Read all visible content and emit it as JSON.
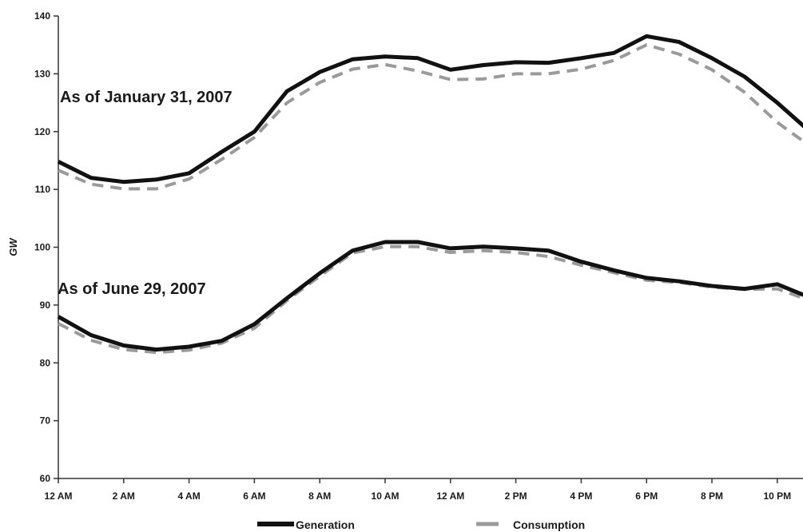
{
  "chart_data": {
    "type": "line",
    "ylabel": "GW",
    "ylim": [
      60,
      140
    ],
    "yticks": [
      60,
      70,
      80,
      90,
      100,
      110,
      120,
      130,
      140
    ],
    "xticks": [
      "12 AM",
      "2 AM",
      "4 AM",
      "6 AM",
      "8 AM",
      "10 AM",
      "12 AM",
      "2 PM",
      "4 PM",
      "6 PM",
      "8 PM",
      "10 PM"
    ],
    "x_hours": [
      0,
      1,
      2,
      3,
      4,
      5,
      6,
      7,
      8,
      9,
      10,
      11,
      12,
      13,
      14,
      15,
      16,
      17,
      18,
      19,
      20,
      21,
      22,
      23
    ],
    "grid": false,
    "legend_placement": "bottom",
    "annotations": [
      {
        "text": "As of January 31, 2007",
        "group": "january"
      },
      {
        "text": "As of June 29, 2007",
        "group": "june"
      }
    ],
    "series": [
      {
        "name": "Generation",
        "group": "january",
        "style": "solid",
        "color": "#111111",
        "values": [
          114.8,
          112.0,
          111.3,
          111.7,
          112.8,
          116.5,
          120.0,
          127.0,
          130.3,
          132.5,
          133.0,
          132.7,
          130.7,
          131.5,
          132.0,
          131.9,
          132.7,
          133.6,
          136.5,
          135.5,
          132.7,
          129.5,
          125.0,
          120.0
        ]
      },
      {
        "name": "Consumption",
        "group": "january",
        "style": "dashed",
        "color": "#9a9a9a",
        "values": [
          113.3,
          110.9,
          110.1,
          110.1,
          111.8,
          115.2,
          119.0,
          125.0,
          128.5,
          130.8,
          131.6,
          130.5,
          129.0,
          129.1,
          130.0,
          130.0,
          130.8,
          132.3,
          135.0,
          133.4,
          130.7,
          126.8,
          121.6,
          117.5
        ]
      },
      {
        "name": "Generation",
        "group": "june",
        "style": "solid",
        "color": "#111111",
        "values": [
          88.0,
          84.8,
          83.0,
          82.3,
          82.8,
          83.8,
          86.7,
          91.2,
          95.5,
          99.4,
          100.9,
          100.9,
          99.8,
          100.1,
          99.8,
          99.4,
          97.5,
          96.0,
          94.7,
          94.1,
          93.3,
          92.8,
          93.6,
          91.3
        ]
      },
      {
        "name": "Consumption",
        "group": "june",
        "style": "dashed",
        "color": "#9a9a9a",
        "values": [
          86.8,
          83.9,
          82.3,
          81.8,
          82.2,
          83.4,
          86.0,
          90.8,
          95.0,
          99.0,
          100.1,
          100.1,
          99.1,
          99.4,
          99.1,
          98.4,
          96.9,
          95.6,
          94.3,
          93.9,
          93.1,
          92.7,
          92.8,
          90.8
        ]
      }
    ]
  },
  "legend": {
    "generation_label": "Generation",
    "consumption_label": "Consumption"
  }
}
